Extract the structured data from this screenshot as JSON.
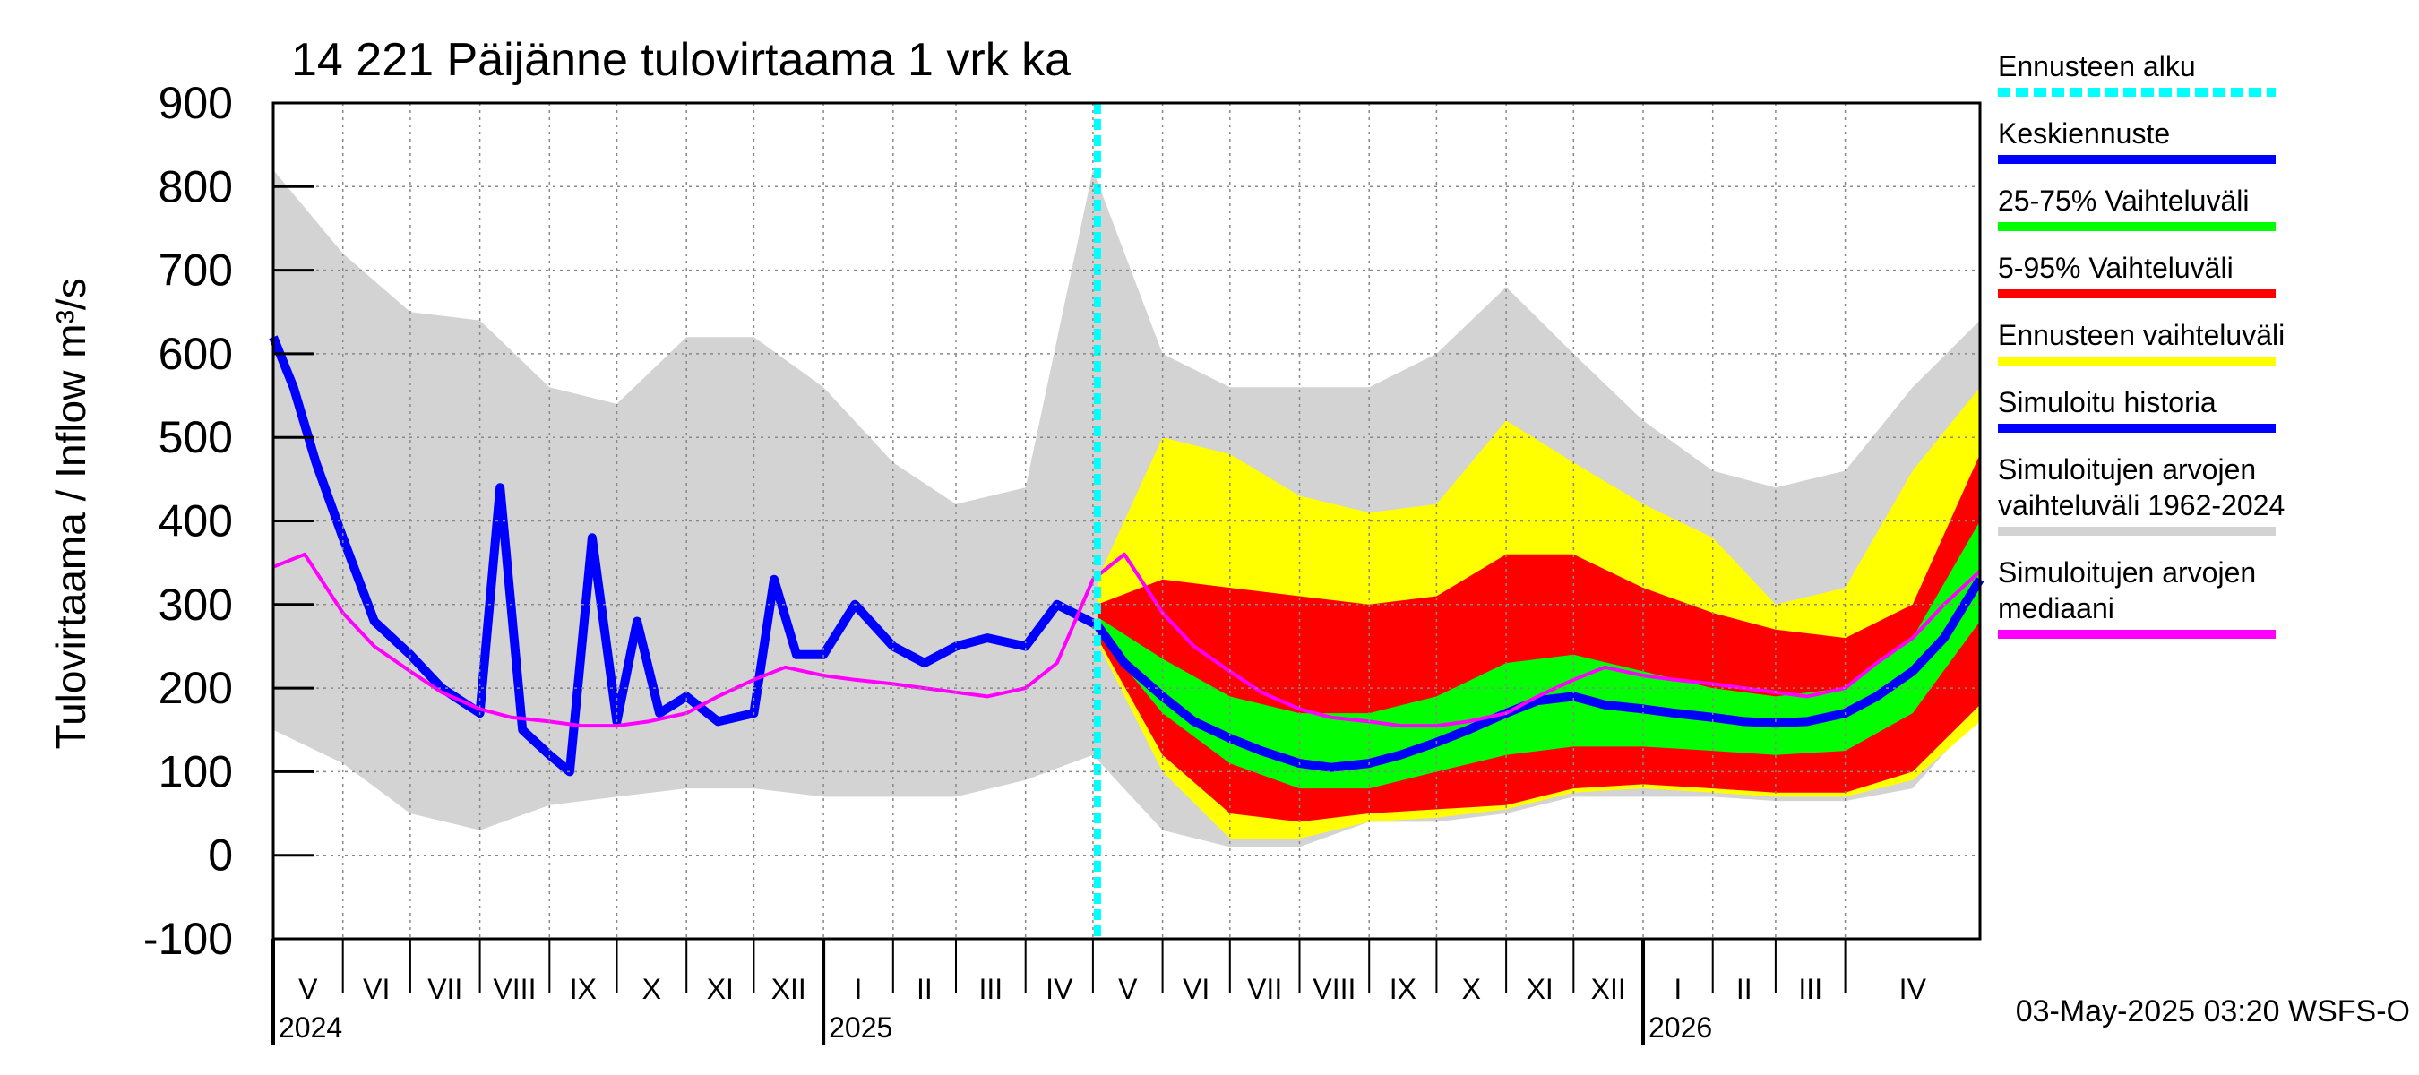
{
  "chart_data": {
    "type": "area",
    "title": "14 221 Päijänne tulovirtaama 1 vrk ka",
    "ylabel": "Tulovirtaama / Inflow",
    "yunit": "m³/s",
    "ylim": [
      -100,
      900
    ],
    "yticks": [
      -100,
      0,
      100,
      200,
      300,
      400,
      500,
      600,
      700,
      800,
      900
    ],
    "x_start": "2024-05-01",
    "x_end": "2026-05-31",
    "forecast_start": "2025-05-03",
    "grid": true,
    "months": [
      {
        "label": "V",
        "start": "2024-05-01"
      },
      {
        "label": "VI",
        "start": "2024-06-01"
      },
      {
        "label": "VII",
        "start": "2024-07-01"
      },
      {
        "label": "VIII",
        "start": "2024-08-01"
      },
      {
        "label": "IX",
        "start": "2024-09-01"
      },
      {
        "label": "X",
        "start": "2024-10-01"
      },
      {
        "label": "XI",
        "start": "2024-11-01"
      },
      {
        "label": "XII",
        "start": "2024-12-01"
      },
      {
        "label": "I",
        "start": "2025-01-01"
      },
      {
        "label": "II",
        "start": "2025-02-01"
      },
      {
        "label": "III",
        "start": "2025-03-01"
      },
      {
        "label": "IV",
        "start": "2025-04-01"
      },
      {
        "label": "V",
        "start": "2025-05-01"
      },
      {
        "label": "VI",
        "start": "2025-06-01"
      },
      {
        "label": "VII",
        "start": "2025-07-01"
      },
      {
        "label": "VIII",
        "start": "2025-08-01"
      },
      {
        "label": "IX",
        "start": "2025-09-01"
      },
      {
        "label": "X",
        "start": "2025-10-01"
      },
      {
        "label": "XI",
        "start": "2025-11-01"
      },
      {
        "label": "XII",
        "start": "2025-12-01"
      },
      {
        "label": "I",
        "start": "2026-01-01"
      },
      {
        "label": "II",
        "start": "2026-02-01"
      },
      {
        "label": "III",
        "start": "2026-03-01"
      },
      {
        "label": "IV",
        "start": "2026-04-01"
      }
    ],
    "years": [
      {
        "label": "2024",
        "start": "2024-05-01"
      },
      {
        "label": "2025",
        "start": "2025-01-01"
      },
      {
        "label": "2026",
        "start": "2026-01-01"
      }
    ],
    "series": [
      {
        "name": "Simuloitujen arvojen vaihteluväli 1962-2024",
        "kind": "band",
        "color": "#d3d3d3",
        "dates": [
          "2024-05-01",
          "2024-06-01",
          "2024-07-01",
          "2024-08-01",
          "2024-09-01",
          "2024-10-01",
          "2024-11-01",
          "2024-12-01",
          "2025-01-01",
          "2025-02-01",
          "2025-03-01",
          "2025-04-01",
          "2025-05-01",
          "2025-06-01",
          "2025-07-01",
          "2025-08-01",
          "2025-09-01",
          "2025-10-01",
          "2025-11-01",
          "2025-12-01",
          "2026-01-01",
          "2026-02-01",
          "2026-03-01",
          "2026-04-01",
          "2026-05-01",
          "2026-05-31"
        ],
        "low": [
          150,
          110,
          50,
          30,
          60,
          70,
          80,
          80,
          70,
          70,
          70,
          90,
          120,
          30,
          10,
          10,
          40,
          40,
          50,
          70,
          70,
          70,
          65,
          65,
          80,
          170
        ],
        "high": [
          820,
          720,
          650,
          640,
          560,
          540,
          620,
          620,
          560,
          470,
          420,
          440,
          820,
          600,
          560,
          560,
          560,
          600,
          680,
          600,
          520,
          460,
          440,
          460,
          560,
          640
        ]
      },
      {
        "name": "Ennusteen vaihteluväli",
        "kind": "band",
        "color": "#ffff00",
        "dates": [
          "2025-05-03",
          "2025-06-01",
          "2025-07-01",
          "2025-08-01",
          "2025-09-01",
          "2025-10-01",
          "2025-11-01",
          "2025-12-01",
          "2026-01-01",
          "2026-02-01",
          "2026-03-01",
          "2026-04-01",
          "2026-05-01",
          "2026-05-31"
        ],
        "low": [
          255,
          100,
          20,
          20,
          40,
          45,
          55,
          75,
          80,
          75,
          70,
          70,
          90,
          160
        ],
        "high": [
          330,
          500,
          480,
          430,
          410,
          420,
          520,
          470,
          420,
          380,
          300,
          320,
          460,
          560
        ]
      },
      {
        "name": "5-95% Vaihteluväli",
        "kind": "band",
        "color": "#ff0000",
        "dates": [
          "2025-05-03",
          "2025-06-01",
          "2025-07-01",
          "2025-08-01",
          "2025-09-01",
          "2025-10-01",
          "2025-11-01",
          "2025-12-01",
          "2026-01-01",
          "2026-02-01",
          "2026-03-01",
          "2026-04-01",
          "2026-05-01",
          "2026-05-31"
        ],
        "low": [
          260,
          120,
          50,
          40,
          50,
          55,
          60,
          80,
          85,
          80,
          75,
          75,
          100,
          180
        ],
        "high": [
          300,
          330,
          320,
          310,
          300,
          310,
          360,
          360,
          320,
          290,
          270,
          260,
          300,
          480
        ]
      },
      {
        "name": "25-75% Vaihteluväli",
        "kind": "band",
        "color": "#00ff00",
        "dates": [
          "2025-05-03",
          "2025-06-01",
          "2025-07-01",
          "2025-08-01",
          "2025-09-01",
          "2025-10-01",
          "2025-11-01",
          "2025-12-01",
          "2026-01-01",
          "2026-02-01",
          "2026-03-01",
          "2026-04-01",
          "2026-05-01",
          "2026-05-31"
        ],
        "low": [
          265,
          170,
          110,
          80,
          80,
          100,
          120,
          130,
          130,
          125,
          120,
          125,
          170,
          280
        ],
        "high": [
          285,
          235,
          190,
          170,
          170,
          190,
          230,
          240,
          220,
          200,
          190,
          200,
          260,
          400
        ]
      },
      {
        "name": "Keskiennuste",
        "kind": "line",
        "color": "#0000ff",
        "dates": [
          "2025-05-03",
          "2025-05-15",
          "2025-06-01",
          "2025-06-15",
          "2025-07-01",
          "2025-07-15",
          "2025-08-01",
          "2025-08-15",
          "2025-09-01",
          "2025-09-15",
          "2025-10-01",
          "2025-10-15",
          "2025-11-01",
          "2025-11-15",
          "2025-12-01",
          "2025-12-15",
          "2026-01-01",
          "2026-01-15",
          "2026-02-01",
          "2026-02-15",
          "2026-03-01",
          "2026-03-15",
          "2026-04-01",
          "2026-04-15",
          "2026-05-01",
          "2026-05-15",
          "2026-05-31"
        ],
        "values": [
          275,
          230,
          190,
          160,
          140,
          125,
          110,
          105,
          110,
          120,
          135,
          150,
          170,
          185,
          190,
          180,
          175,
          170,
          165,
          160,
          158,
          160,
          170,
          190,
          220,
          260,
          330
        ]
      },
      {
        "name": "Simuloitu historia",
        "kind": "line",
        "color": "#0000ff",
        "dates": [
          "2024-05-01",
          "2024-05-10",
          "2024-05-20",
          "2024-06-01",
          "2024-06-15",
          "2024-07-01",
          "2024-07-15",
          "2024-08-01",
          "2024-08-10",
          "2024-08-20",
          "2024-09-01",
          "2024-09-10",
          "2024-09-20",
          "2024-10-01",
          "2024-10-10",
          "2024-10-20",
          "2024-11-01",
          "2024-11-15",
          "2024-12-01",
          "2024-12-10",
          "2024-12-20",
          "2025-01-01",
          "2025-01-15",
          "2025-02-01",
          "2025-02-15",
          "2025-03-01",
          "2025-03-15",
          "2025-04-01",
          "2025-04-15",
          "2025-05-03"
        ],
        "values": [
          620,
          560,
          470,
          380,
          280,
          240,
          200,
          170,
          440,
          150,
          120,
          100,
          380,
          160,
          280,
          170,
          190,
          160,
          170,
          330,
          240,
          240,
          300,
          250,
          230,
          250,
          260,
          250,
          300,
          275
        ]
      },
      {
        "name": "Simuloitujen arvojen mediaani",
        "kind": "line",
        "color": "#ff00ff",
        "dates": [
          "2024-05-01",
          "2024-05-15",
          "2024-06-01",
          "2024-06-15",
          "2024-07-01",
          "2024-07-15",
          "2024-08-01",
          "2024-08-15",
          "2024-09-01",
          "2024-09-15",
          "2024-10-01",
          "2024-10-15",
          "2024-11-01",
          "2024-11-15",
          "2024-12-01",
          "2024-12-15",
          "2025-01-01",
          "2025-01-15",
          "2025-02-01",
          "2025-02-15",
          "2025-03-01",
          "2025-03-15",
          "2025-04-01",
          "2025-04-15",
          "2025-05-01",
          "2025-05-15",
          "2025-06-01",
          "2025-06-15",
          "2025-07-01",
          "2025-07-15",
          "2025-08-01",
          "2025-08-15",
          "2025-09-01",
          "2025-09-15",
          "2025-10-01",
          "2025-10-15",
          "2025-11-01",
          "2025-11-15",
          "2025-12-01",
          "2025-12-15",
          "2026-01-01",
          "2026-01-15",
          "2026-02-01",
          "2026-02-15",
          "2026-03-01",
          "2026-03-15",
          "2026-04-01",
          "2026-04-15",
          "2026-05-01",
          "2026-05-15",
          "2026-05-31"
        ],
        "values": [
          345,
          360,
          290,
          250,
          220,
          195,
          175,
          165,
          160,
          155,
          155,
          160,
          170,
          190,
          210,
          225,
          215,
          210,
          205,
          200,
          195,
          190,
          200,
          230,
          330,
          360,
          290,
          250,
          220,
          195,
          175,
          165,
          160,
          155,
          155,
          160,
          170,
          190,
          210,
          225,
          215,
          210,
          205,
          200,
          195,
          190,
          200,
          230,
          260,
          300,
          340
        ]
      }
    ],
    "forecast_marker_color": "#00ffff"
  },
  "legend": [
    {
      "label": "Ennusteen alku",
      "color": "#00ffff",
      "style": "dashed"
    },
    {
      "label": "Keskiennuste",
      "color": "#0000ff",
      "style": "solid"
    },
    {
      "label": "25-75% Vaihteluväli",
      "color": "#00ff00",
      "style": "solid"
    },
    {
      "label": "5-95% Vaihteluväli",
      "color": "#ff0000",
      "style": "solid"
    },
    {
      "label": "Ennusteen vaihteluväli",
      "color": "#ffff00",
      "style": "solid"
    },
    {
      "label": "Simuloitu historia",
      "color": "#0000ff",
      "style": "solid"
    },
    {
      "label": "Simuloitujen arvojen vaihteluväli 1962-2024",
      "line1": "Simuloitujen arvojen",
      "line2": "vaihteluväli 1962-2024",
      "color": "#d3d3d3",
      "style": "solid"
    },
    {
      "label": "Simuloitujen arvojen mediaani",
      "line1": "Simuloitujen arvojen",
      "line2": "mediaani",
      "color": "#ff00ff",
      "style": "solid"
    }
  ],
  "footer": {
    "timestamp": "03-May-2025 03:20 WSFS-O"
  }
}
